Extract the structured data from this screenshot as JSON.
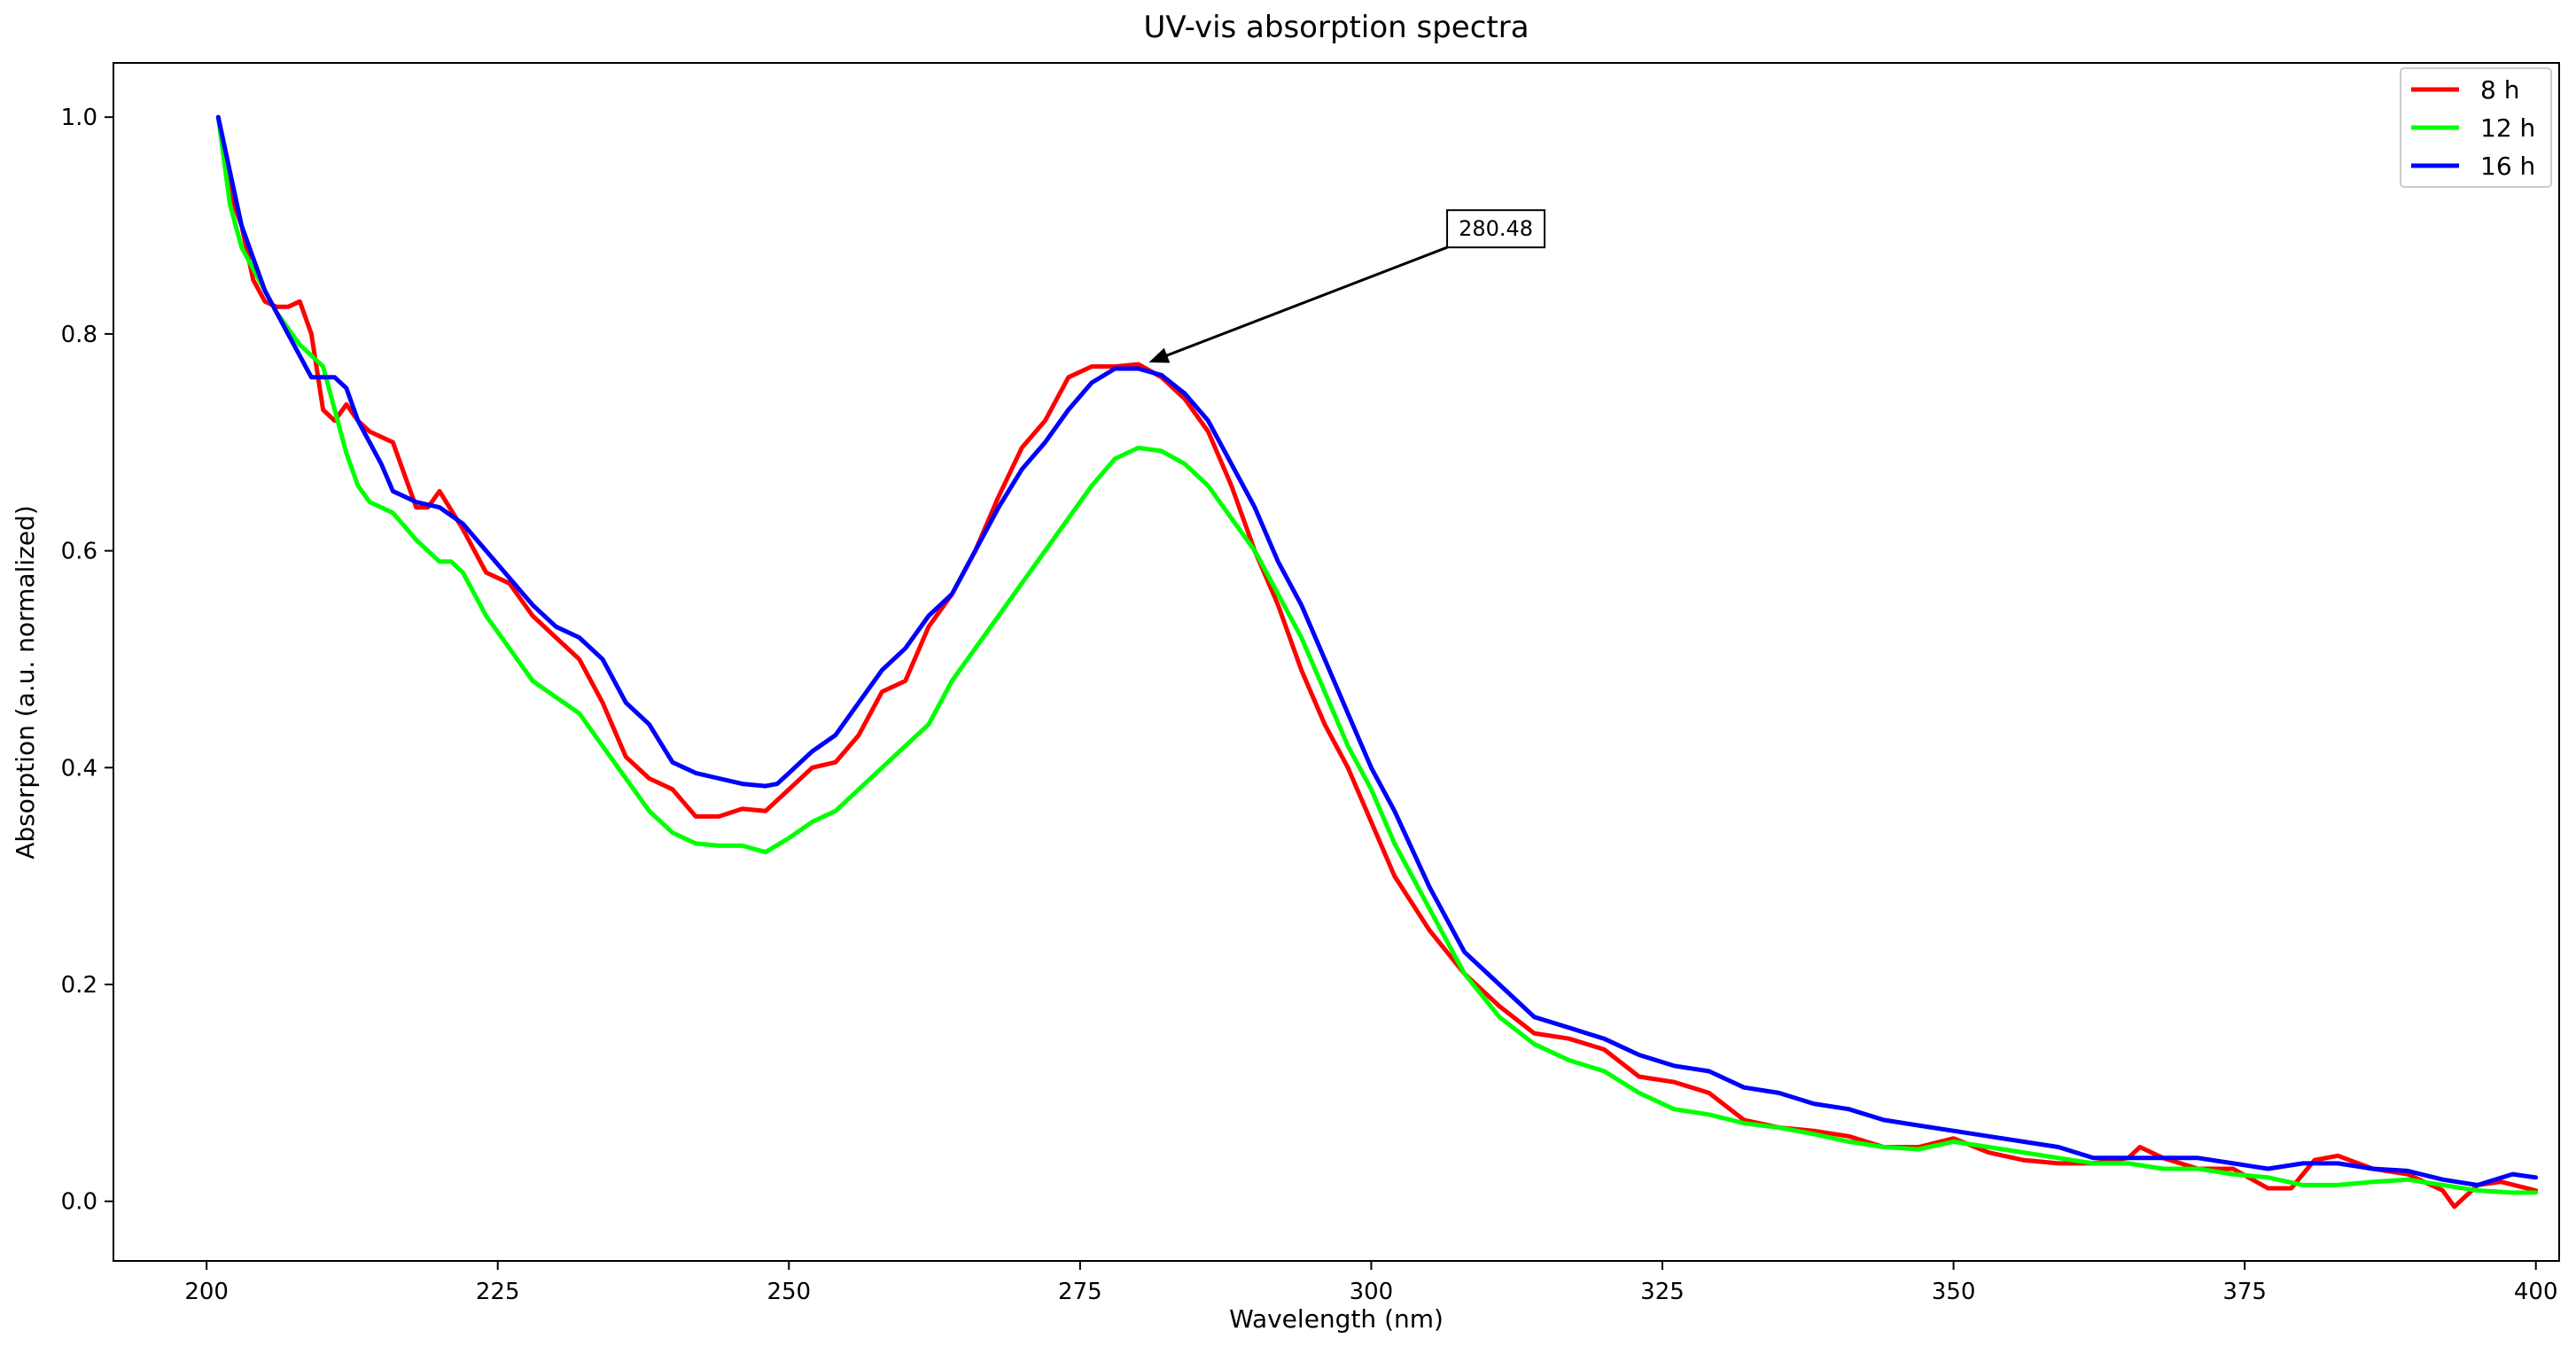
{
  "chart_data": {
    "type": "line",
    "title": "UV-vis absorption spectra",
    "xlabel": "Wavelength (nm)",
    "ylabel": "Absorption (a.u. normalized)",
    "xlim": [
      192,
      402
    ],
    "ylim": [
      -0.055,
      1.05
    ],
    "xticks": [
      200,
      225,
      250,
      275,
      300,
      325,
      350,
      375,
      400
    ],
    "yticks": [
      0.0,
      0.2,
      0.4,
      0.6,
      0.8,
      1.0
    ],
    "ytick_labels": [
      "0.0",
      "0.2",
      "0.4",
      "0.6",
      "0.8",
      "1.0"
    ],
    "grid": false,
    "legend_position": "top-right",
    "series": [
      {
        "name": "8 h",
        "color": "#ff0000",
        "x": [
          201,
          202,
          203,
          204,
          205,
          206,
          207,
          208,
          209,
          210,
          211,
          212,
          213,
          214,
          216,
          218,
          219,
          220,
          222,
          224,
          226,
          228,
          230,
          232,
          234,
          236,
          238,
          240,
          242,
          243,
          244,
          246,
          248,
          250,
          252,
          254,
          256,
          258,
          260,
          262,
          264,
          266,
          268,
          270,
          272,
          274,
          276,
          278,
          280,
          282,
          284,
          286,
          288,
          290,
          292,
          294,
          296,
          298,
          300,
          302,
          305,
          308,
          311,
          314,
          317,
          320,
          323,
          326,
          329,
          332,
          335,
          338,
          341,
          344,
          347,
          350,
          353,
          356,
          359,
          362,
          365,
          366,
          368,
          371,
          374,
          377,
          379,
          381,
          383,
          386,
          389,
          392,
          393,
          395,
          397,
          400
        ],
        "values": [
          1.0,
          0.93,
          0.9,
          0.85,
          0.83,
          0.825,
          0.825,
          0.83,
          0.8,
          0.73,
          0.72,
          0.735,
          0.72,
          0.71,
          0.7,
          0.64,
          0.64,
          0.655,
          0.62,
          0.58,
          0.57,
          0.54,
          0.52,
          0.5,
          0.46,
          0.41,
          0.39,
          0.38,
          0.355,
          0.355,
          0.355,
          0.362,
          0.36,
          0.38,
          0.4,
          0.405,
          0.43,
          0.47,
          0.48,
          0.53,
          0.56,
          0.6,
          0.65,
          0.695,
          0.72,
          0.76,
          0.77,
          0.77,
          0.772,
          0.76,
          0.74,
          0.71,
          0.66,
          0.6,
          0.55,
          0.49,
          0.44,
          0.4,
          0.35,
          0.3,
          0.25,
          0.21,
          0.18,
          0.155,
          0.15,
          0.14,
          0.115,
          0.11,
          0.1,
          0.075,
          0.068,
          0.065,
          0.06,
          0.05,
          0.05,
          0.058,
          0.045,
          0.038,
          0.035,
          0.035,
          0.04,
          0.05,
          0.04,
          0.03,
          0.03,
          0.012,
          0.012,
          0.038,
          0.042,
          0.03,
          0.025,
          0.01,
          -0.005,
          0.015,
          0.018,
          0.01
        ]
      },
      {
        "name": "12 h",
        "color": "#00ff00",
        "x": [
          201,
          202,
          203,
          204,
          206,
          208,
          210,
          211,
          212,
          213,
          214,
          216,
          218,
          220,
          221,
          222,
          224,
          226,
          228,
          230,
          232,
          234,
          236,
          238,
          240,
          241,
          242,
          244,
          246,
          248,
          250,
          252,
          254,
          256,
          258,
          260,
          262,
          264,
          266,
          268,
          270,
          272,
          274,
          276,
          278,
          280,
          282,
          284,
          286,
          288,
          290,
          292,
          294,
          296,
          298,
          300,
          302,
          305,
          308,
          311,
          314,
          317,
          320,
          323,
          326,
          329,
          332,
          335,
          338,
          341,
          344,
          347,
          350,
          353,
          356,
          359,
          362,
          365,
          368,
          371,
          374,
          377,
          380,
          383,
          386,
          389,
          392,
          395,
          398,
          400
        ],
        "values": [
          1.0,
          0.92,
          0.88,
          0.86,
          0.82,
          0.79,
          0.77,
          0.73,
          0.69,
          0.66,
          0.645,
          0.635,
          0.61,
          0.59,
          0.59,
          0.58,
          0.54,
          0.51,
          0.48,
          0.465,
          0.45,
          0.42,
          0.39,
          0.36,
          0.34,
          0.335,
          0.33,
          0.328,
          0.328,
          0.322,
          0.335,
          0.35,
          0.36,
          0.38,
          0.4,
          0.42,
          0.44,
          0.48,
          0.51,
          0.54,
          0.57,
          0.6,
          0.63,
          0.66,
          0.685,
          0.695,
          0.692,
          0.68,
          0.66,
          0.63,
          0.6,
          0.56,
          0.52,
          0.47,
          0.42,
          0.38,
          0.33,
          0.27,
          0.21,
          0.17,
          0.145,
          0.13,
          0.12,
          0.1,
          0.085,
          0.08,
          0.072,
          0.068,
          0.062,
          0.055,
          0.05,
          0.048,
          0.055,
          0.05,
          0.045,
          0.04,
          0.035,
          0.035,
          0.03,
          0.03,
          0.025,
          0.022,
          0.015,
          0.015,
          0.018,
          0.02,
          0.015,
          0.01,
          0.008,
          0.008
        ]
      },
      {
        "name": "16 h",
        "color": "#0000ff",
        "x": [
          201,
          202,
          203,
          204,
          205,
          206,
          207,
          208,
          209,
          210,
          211,
          212,
          213,
          214,
          215,
          216,
          218,
          220,
          222,
          224,
          226,
          228,
          230,
          232,
          234,
          236,
          238,
          240,
          241,
          242,
          244,
          246,
          248,
          249,
          250,
          251,
          252,
          254,
          256,
          258,
          260,
          262,
          264,
          266,
          268,
          270,
          272,
          274,
          276,
          278,
          280,
          282,
          284,
          286,
          288,
          290,
          292,
          294,
          296,
          298,
          300,
          302,
          305,
          308,
          311,
          314,
          317,
          320,
          323,
          326,
          329,
          332,
          335,
          338,
          341,
          344,
          347,
          350,
          353,
          356,
          359,
          362,
          365,
          368,
          371,
          374,
          377,
          380,
          383,
          386,
          389,
          392,
          395,
          398,
          400
        ],
        "values": [
          1.0,
          0.95,
          0.9,
          0.87,
          0.84,
          0.82,
          0.8,
          0.78,
          0.76,
          0.76,
          0.76,
          0.75,
          0.72,
          0.7,
          0.68,
          0.655,
          0.645,
          0.64,
          0.625,
          0.6,
          0.575,
          0.55,
          0.53,
          0.52,
          0.5,
          0.46,
          0.44,
          0.405,
          0.4,
          0.395,
          0.39,
          0.385,
          0.383,
          0.385,
          0.395,
          0.405,
          0.415,
          0.43,
          0.46,
          0.49,
          0.51,
          0.54,
          0.56,
          0.6,
          0.64,
          0.675,
          0.7,
          0.73,
          0.755,
          0.768,
          0.768,
          0.762,
          0.745,
          0.72,
          0.68,
          0.64,
          0.59,
          0.55,
          0.5,
          0.45,
          0.4,
          0.36,
          0.29,
          0.23,
          0.2,
          0.17,
          0.16,
          0.15,
          0.135,
          0.125,
          0.12,
          0.105,
          0.1,
          0.09,
          0.085,
          0.075,
          0.07,
          0.065,
          0.06,
          0.055,
          0.05,
          0.04,
          0.04,
          0.04,
          0.04,
          0.035,
          0.03,
          0.035,
          0.035,
          0.03,
          0.028,
          0.02,
          0.015,
          0.025,
          0.022
        ]
      }
    ],
    "annotations": [
      {
        "text": "280.48",
        "x": 280.48,
        "y": 0.772,
        "text_x": 310.7,
        "text_y": 0.897
      }
    ]
  }
}
